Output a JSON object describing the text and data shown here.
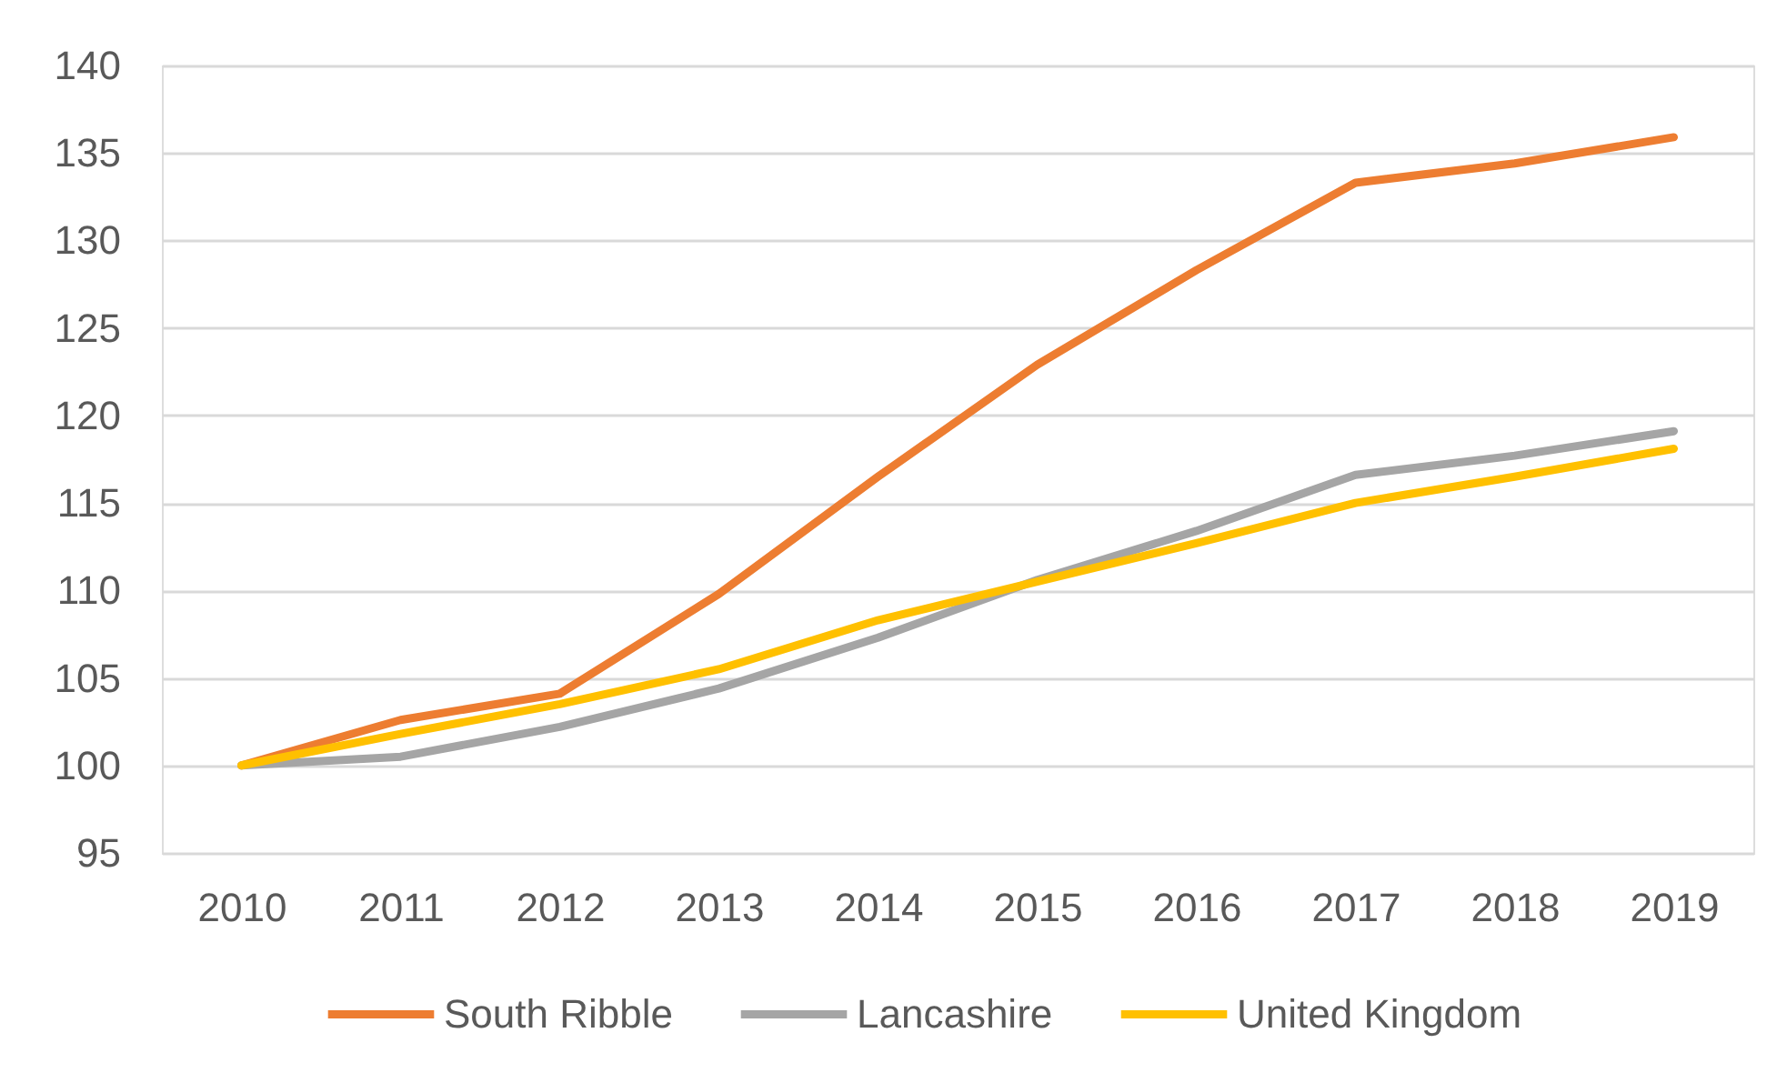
{
  "chart_data": {
    "type": "line",
    "categories": [
      "2010",
      "2011",
      "2012",
      "2013",
      "2014",
      "2015",
      "2016",
      "2017",
      "2018",
      "2019"
    ],
    "series": [
      {
        "name": "South Ribble",
        "color": "#ed7d31",
        "values": [
          100,
          102.6,
          104.1,
          109.8,
          116.5,
          122.9,
          128.3,
          133.3,
          134.4,
          135.9
        ]
      },
      {
        "name": "Lancashire",
        "color": "#a5a5a5",
        "values": [
          100,
          100.5,
          102.2,
          104.4,
          107.3,
          110.6,
          113.4,
          116.6,
          117.7,
          119.1
        ]
      },
      {
        "name": "United Kingdom",
        "color": "#ffc000",
        "values": [
          100,
          101.8,
          103.5,
          105.5,
          108.3,
          110.5,
          112.7,
          115.0,
          116.5,
          118.1
        ]
      }
    ],
    "ylim": [
      95,
      140
    ],
    "yticks": [
      95,
      100,
      105,
      110,
      115,
      120,
      125,
      130,
      135,
      140
    ],
    "grid": "y",
    "legend": "bottom"
  }
}
